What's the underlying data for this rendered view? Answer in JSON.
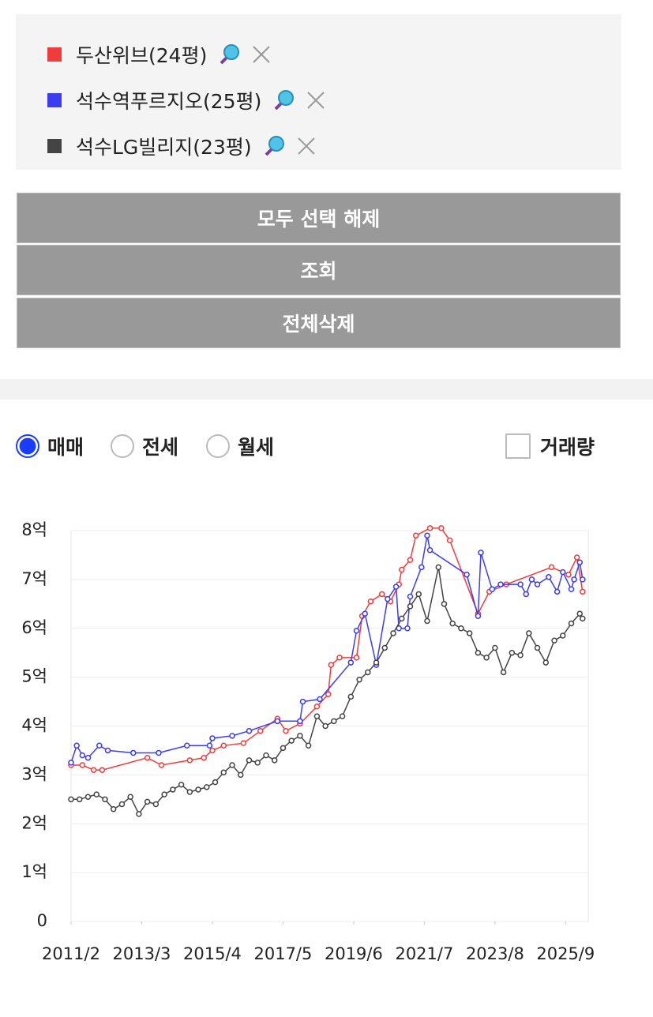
{
  "buttons": [
    "모두 선택 해제",
    "조회",
    "전체삭제"
  ],
  "options": [
    {
      "label": "매매",
      "checked": true
    },
    {
      "label": "전세",
      "checked": false
    },
    {
      "label": "월세",
      "checked": false
    }
  ],
  "checkbox": {
    "label": "거래량",
    "checked": false
  },
  "chart_data": {
    "type": "line",
    "ylim": [
      0,
      8
    ],
    "yticks": [
      0,
      {
        "value": 1,
        "label": "1억"
      },
      {
        "value": 2,
        "label": "2억"
      },
      {
        "value": 3,
        "label": "3억"
      },
      {
        "value": 4,
        "label": "4억"
      },
      {
        "value": 5,
        "label": "5억"
      },
      {
        "value": 6,
        "label": "6억"
      },
      {
        "value": 7,
        "label": "7억"
      },
      {
        "value": 8,
        "label": "8억"
      }
    ],
    "xlim": [
      "2011/2",
      "2026/5"
    ],
    "xticks": [
      "2011/2",
      "2013/3",
      "2015/4",
      "2017/5",
      "2019/6",
      "2021/7",
      "2023/8",
      "2025/9"
    ],
    "grid": true,
    "series": [
      {
        "name": "두산위브(24평)",
        "color": "#f03c3c",
        "x": [
          "2011/2",
          "2011/6",
          "2011/10",
          "2012/1",
          "2013/5",
          "2013/10",
          "2014/8",
          "2015/1",
          "2015/4",
          "2015/8",
          "2016/3",
          "2016/9",
          "2017/3",
          "2017/6",
          "2017/11",
          "2018/5",
          "2018/9",
          "2018/10",
          "2019/1",
          "2019/7",
          "2019/9",
          "2019/12",
          "2020/4",
          "2020/7",
          "2020/10",
          "2020/11",
          "2021/2",
          "2021/4",
          "2021/9",
          "2022/1",
          "2022/4",
          "2023/2",
          "2023/6",
          "2023/12",
          "2025/4",
          "2025/10",
          "2026/1",
          "2026/3"
        ],
        "values": [
          3.2,
          3.2,
          3.1,
          3.1,
          3.35,
          3.2,
          3.3,
          3.35,
          3.5,
          3.6,
          3.65,
          3.9,
          4.15,
          3.9,
          4.05,
          4.4,
          4.65,
          5.25,
          5.4,
          5.4,
          6.25,
          6.55,
          6.7,
          6.55,
          6.9,
          7.2,
          7.4,
          7.9,
          8.05,
          8.05,
          7.8,
          6.3,
          6.75,
          6.9,
          7.25,
          7.1,
          7.45,
          6.75
        ]
      },
      {
        "name": "석수역푸르지오(25평)",
        "color": "#3c3cf0",
        "x": [
          "2011/2",
          "2011/4",
          "2011/6",
          "2011/8",
          "2011/12",
          "2012/3",
          "2012/12",
          "2013/9",
          "2014/7",
          "2015/3",
          "2015/4",
          "2015/11",
          "2016/5",
          "2017/3",
          "2017/11",
          "2017/12",
          "2018/6",
          "2019/5",
          "2019/7",
          "2019/10",
          "2020/2",
          "2020/6",
          "2020/9",
          "2020/10",
          "2021/1",
          "2021/2",
          "2021/6",
          "2021/8",
          "2021/9",
          "2022/10",
          "2023/2",
          "2023/3",
          "2023/7",
          "2023/10",
          "2024/5",
          "2024/7",
          "2024/9",
          "2024/11",
          "2025/3",
          "2025/6",
          "2025/8",
          "2025/11",
          "2025/12",
          "2026/2",
          "2026/3"
        ],
        "values": [
          3.25,
          3.6,
          3.4,
          3.35,
          3.6,
          3.5,
          3.45,
          3.45,
          3.6,
          3.6,
          3.75,
          3.8,
          3.9,
          4.1,
          4.1,
          4.5,
          4.55,
          5.3,
          5.95,
          6.3,
          5.25,
          6.6,
          6.85,
          6.0,
          6.0,
          6.65,
          7.25,
          7.9,
          7.6,
          7.1,
          6.25,
          7.55,
          6.8,
          6.9,
          6.9,
          6.7,
          7.0,
          6.9,
          7.05,
          6.75,
          7.15,
          6.8,
          7.0,
          7.35,
          7.0
        ]
      },
      {
        "name": "석수LG빌리지(23평)",
        "color": "#444444",
        "x": [
          "2011/2",
          "2011/5",
          "2011/8",
          "2011/11",
          "2012/2",
          "2012/5",
          "2012/8",
          "2012/11",
          "2013/2",
          "2013/5",
          "2013/8",
          "2013/11",
          "2014/2",
          "2014/5",
          "2014/8",
          "2014/11",
          "2015/2",
          "2015/5",
          "2015/8",
          "2015/11",
          "2016/2",
          "2016/5",
          "2016/8",
          "2016/11",
          "2017/2",
          "2017/5",
          "2017/8",
          "2017/11",
          "2018/2",
          "2018/5",
          "2018/8",
          "2018/11",
          "2019/2",
          "2019/5",
          "2019/8",
          "2019/11",
          "2020/2",
          "2020/5",
          "2020/8",
          "2020/11",
          "2021/2",
          "2021/5",
          "2021/8",
          "2021/12",
          "2022/2",
          "2022/5",
          "2022/8",
          "2022/11",
          "2023/2",
          "2023/5",
          "2023/8",
          "2023/11",
          "2024/2",
          "2024/5",
          "2024/8",
          "2024/11",
          "2025/2",
          "2025/5",
          "2025/8",
          "2025/11",
          "2026/2",
          "2026/3"
        ],
        "values": [
          2.5,
          2.5,
          2.55,
          2.6,
          2.5,
          2.3,
          2.4,
          2.55,
          2.2,
          2.45,
          2.4,
          2.6,
          2.7,
          2.8,
          2.65,
          2.7,
          2.75,
          2.85,
          3.05,
          3.2,
          3.0,
          3.3,
          3.25,
          3.4,
          3.3,
          3.55,
          3.7,
          3.8,
          3.6,
          4.2,
          4.0,
          4.1,
          4.2,
          4.6,
          4.95,
          5.1,
          5.3,
          5.6,
          5.9,
          6.2,
          6.45,
          6.7,
          6.15,
          7.25,
          6.5,
          6.1,
          6.0,
          5.9,
          5.5,
          5.4,
          5.6,
          5.1,
          5.5,
          5.45,
          5.9,
          5.6,
          5.3,
          5.75,
          5.85,
          6.1,
          6.3,
          6.2
        ]
      }
    ]
  }
}
